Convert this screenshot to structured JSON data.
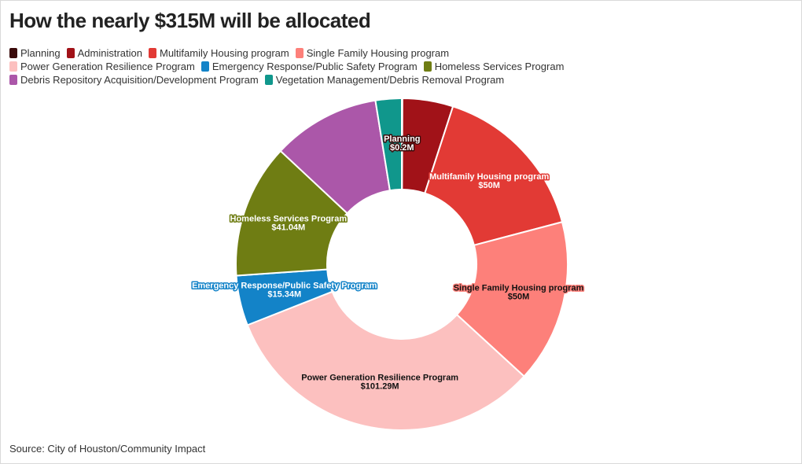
{
  "chart_data": {
    "type": "donut",
    "title": "How the nearly $315M will be allocated",
    "source": "Source: City of Houston/Community Impact",
    "categories": [
      "Planning",
      "Administration",
      "Multifamily Housing program",
      "Single Family Housing program",
      "Power Generation Resilience Program",
      "Emergency Response/Public Safety Program",
      "Homeless Services Program",
      "Debris Repository Acquisition/Development Program",
      "Vegetation Management/Debris Removal Program"
    ],
    "values": [
      0.2,
      15.5,
      50,
      50,
      101.29,
      15.34,
      41.04,
      33,
      8
    ],
    "value_labels": [
      "$0.2M",
      null,
      "$50M",
      "$50M",
      "$101.29M",
      "$15.34M",
      "$41.04M",
      null,
      null
    ],
    "colors": [
      "#3a0a0a",
      "#a11218",
      "#e23a35",
      "#fd807a",
      "#fcc0bf",
      "#1383c8",
      "#6f7d13",
      "#ab57a9",
      "#10978c"
    ]
  }
}
